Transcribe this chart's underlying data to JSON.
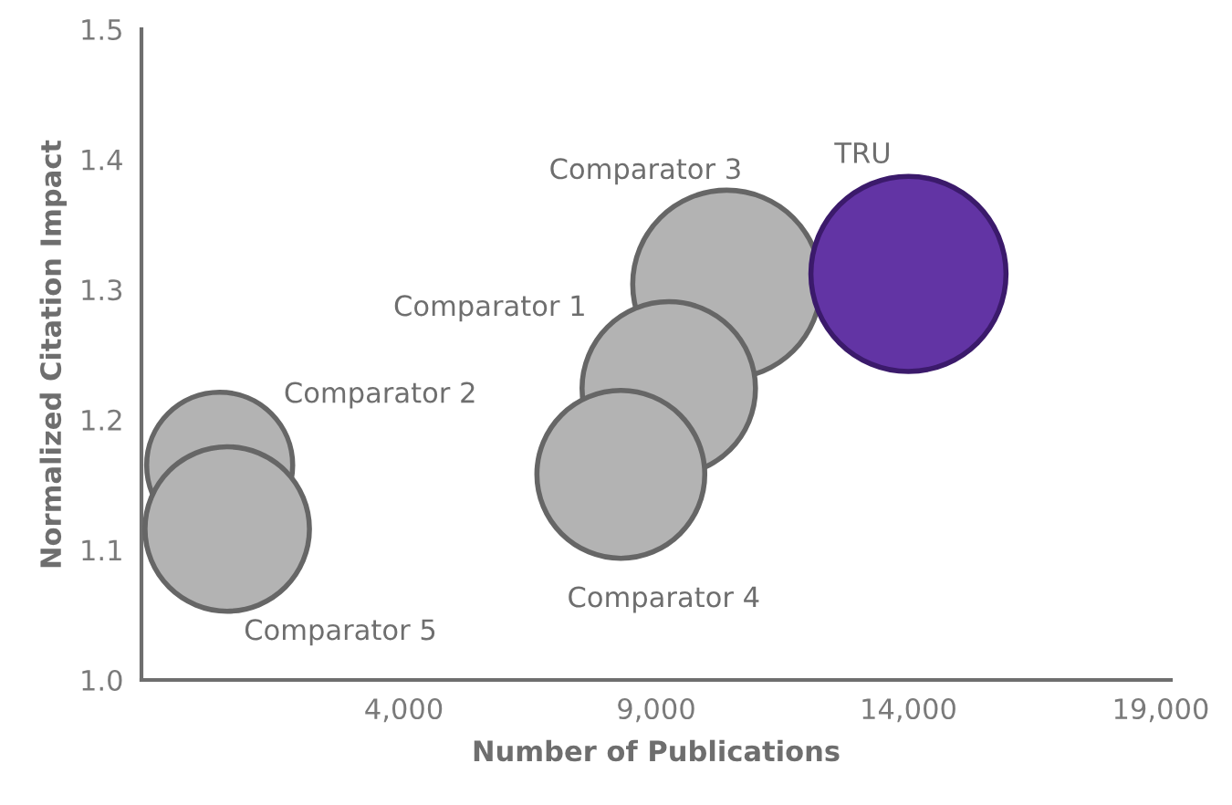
{
  "chart_data": {
    "type": "bubble",
    "xlabel": "Number of Publications",
    "ylabel": "Normalized Citation Impact",
    "xlim": [
      -1200,
      19200
    ],
    "ylim": [
      1.0,
      1.5
    ],
    "xticks": [
      {
        "value": 4000,
        "label": "4,000"
      },
      {
        "value": 9000,
        "label": "9,000"
      },
      {
        "value": 14000,
        "label": "14,000"
      },
      {
        "value": 19000,
        "label": "19,000"
      }
    ],
    "yticks": [
      {
        "value": 1.0,
        "label": "1.0"
      },
      {
        "value": 1.1,
        "label": "1.1"
      },
      {
        "value": 1.2,
        "label": "1.2"
      },
      {
        "value": 1.3,
        "label": "1.3"
      },
      {
        "value": 1.4,
        "label": "1.4"
      },
      {
        "value": 1.5,
        "label": "1.5"
      }
    ],
    "grid": false,
    "legend": false,
    "series": [
      {
        "name": "TRU",
        "color": "#6234a4",
        "x": [
          14000
        ],
        "values": [
          1.312
        ],
        "sizes": [
          1
        ]
      },
      {
        "name": "Comparator 3",
        "color": "#b3b3b3",
        "x": [
          10400
        ],
        "values": [
          1.304
        ],
        "sizes": [
          0.93
        ]
      },
      {
        "name": "Comparator 1",
        "color": "#b3b3b3",
        "x": [
          9250
        ],
        "values": [
          1.224
        ],
        "sizes": [
          0.79
        ]
      },
      {
        "name": "Comparator 4",
        "color": "#b3b3b3",
        "x": [
          8300
        ],
        "values": [
          1.158
        ],
        "sizes": [
          0.74
        ]
      },
      {
        "name": "Comparator 2",
        "color": "#b3b3b3",
        "x": [
          350
        ],
        "values": [
          1.165
        ],
        "sizes": [
          0.56
        ]
      },
      {
        "name": "Comparator 5",
        "color": "#b3b3b3",
        "x": [
          500
        ],
        "values": [
          1.116
        ],
        "sizes": [
          0.71
        ]
      }
    ]
  }
}
